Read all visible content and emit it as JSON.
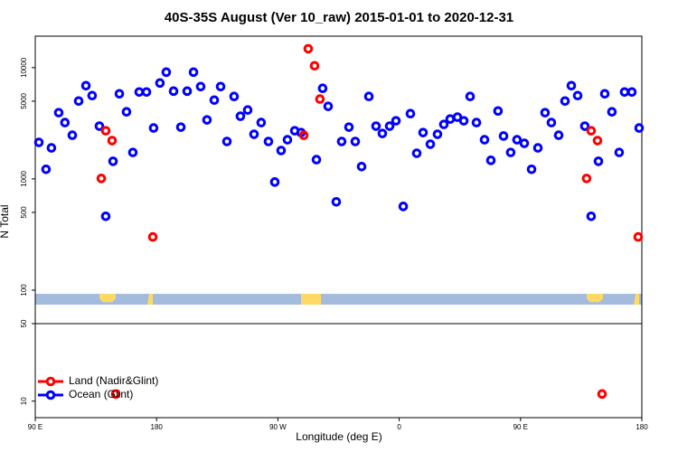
{
  "chart_data": [
    {
      "type": "scatter",
      "title": "40S-35S August (Ver 10_raw)   2015-01-01 to 2020-12-31",
      "ylabel": "N Total",
      "ylog": true,
      "xlim": [
        90,
        540
      ],
      "ylim": [
        50,
        19200
      ],
      "yticks": [
        100,
        500,
        1000,
        5000,
        10000
      ],
      "series": [
        {
          "color": "#0000ff",
          "x": [
            92.7,
            98,
            102,
            107.4,
            112,
            117.5,
            122.2,
            127.6,
            132.2,
            137.6,
            142.3,
            147.7,
            152.4,
            157.7,
            162.4,
            167.1,
            172.5,
            177.8,
            182.5,
            187.2,
            192.6,
            198,
            202.7,
            207.4,
            212.7,
            217.4,
            222.8,
            227.5,
            232.2,
            237.5,
            242.2,
            247.6,
            252.3,
            257.6,
            263,
            267.7,
            272.4,
            277.1,
            282.5,
            287.2,
            298.6,
            303.2,
            307.3,
            313.3,
            317.3,
            322.7,
            327.4,
            332.1,
            337.5,
            342.8,
            347.5,
            352.9,
            357.6,
            363,
            368.3,
            373,
            377.7,
            383.1,
            388.4,
            393.1,
            397.8,
            403.2,
            407.9,
            412.6,
            417.3,
            423.3,
            428,
            433.3,
            437.4,
            442.7,
            447.4,
            452.8,
            458.2,
            462.9,
            468.2,
            472.9,
            478.3,
            483,
            487.7,
            492.4,
            497.7,
            502.4,
            507.8,
            512.5,
            517.8,
            523.2,
            527.2,
            532.6,
            538
          ],
          "values": [
            2130,
            1220,
            1900,
            3940,
            3210,
            2470,
            5010,
            6890,
            5610,
            2980,
            461,
            1440,
            5820,
            4010,
            1730,
            6040,
            6040,
            2870,
            7280,
            9110,
            6150,
            2920,
            6150,
            9110,
            6760,
            3390,
            5110,
            6760,
            2170,
            5510,
            3660,
            4160,
            2520,
            3210,
            2170,
            938,
            1800,
            2250,
            2710,
            2610,
            1490,
            6520,
            4490,
            622,
            2170,
            2920,
            2170,
            1290,
            5510,
            2980,
            2560,
            2980,
            3330,
            566,
            3860,
            1700,
            2610,
            2050,
            2520,
            3090,
            3450,
            3590,
            3330,
            5510,
            3210,
            2250,
            1470,
            4080,
            2430,
            1730,
            2250,
            2090,
            1220,
            1900,
            3940,
            3210,
            2470,
            5010,
            6890,
            5610,
            2980,
            461,
            1440,
            5820,
            4010,
            1730,
            6040,
            6040,
            2870
          ]
        },
        {
          "color": "#ff0000",
          "x": [
            139,
            142.3,
            147,
            177.2,
            289.2,
            292.5,
            297.2,
            301.2,
            499,
            502.4,
            507.1,
            537.3
          ],
          "values": [
            1010,
            2710,
            2210,
            301,
            2470,
            14800,
            10400,
            5220,
            1010,
            2710,
            2210,
            301
          ]
        }
      ]
    },
    {
      "type": "scatter",
      "xlabel": "Longitude (deg E)",
      "ylog": true,
      "xlim": [
        90,
        540
      ],
      "ylim": [
        7.1,
        50
      ],
      "yticks": [
        10,
        50
      ],
      "xticks": [
        {
          "value": 90,
          "label": "90 E"
        },
        180,
        {
          "value": 270,
          "label": "90 W"
        },
        {
          "value": 360,
          "label": "0"
        },
        {
          "value": 450,
          "label": "90 E"
        },
        {
          "value": 540,
          "label": "180"
        }
      ],
      "legend": "lower left",
      "series": [
        {
          "name": "Land (Nadir&Glint)",
          "color": "#ff0000",
          "x": [
            149.7,
            510.5
          ],
          "values": [
            11.6,
            11.6
          ]
        },
        {
          "name": "Ocean (Glint)",
          "color": "#0000ff",
          "x": [],
          "values": []
        }
      ]
    }
  ]
}
